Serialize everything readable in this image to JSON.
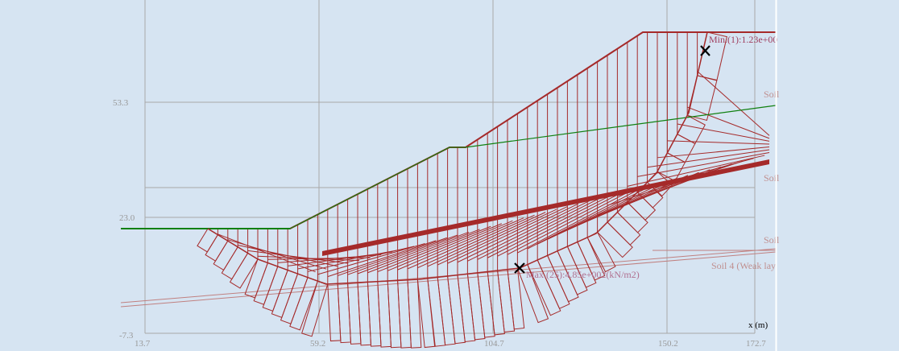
{
  "axes": {
    "x_title": "x (m)",
    "x_ticks": [
      "13.7",
      "59.2",
      "104.7",
      "150.2",
      "172.7"
    ],
    "y_ticks": [
      "53.3",
      "23.0",
      "-7.3"
    ]
  },
  "annotations": {
    "min_label": "Min.(1):1.23e+00",
    "max_label": "Max.(25):4.85e+002(kN/m2)"
  },
  "soil_labels": [
    "Soil",
    "Soil",
    "Soil",
    "Soil 4 (Weak lay"
  ],
  "colors": {
    "background": "#d6e4f2",
    "grid": "#a8a8a8",
    "slice": "#a52a2a",
    "water": "#108010",
    "soil_boundary": "#c08080",
    "soil_label": "#c09090",
    "marker": "#000000"
  }
}
